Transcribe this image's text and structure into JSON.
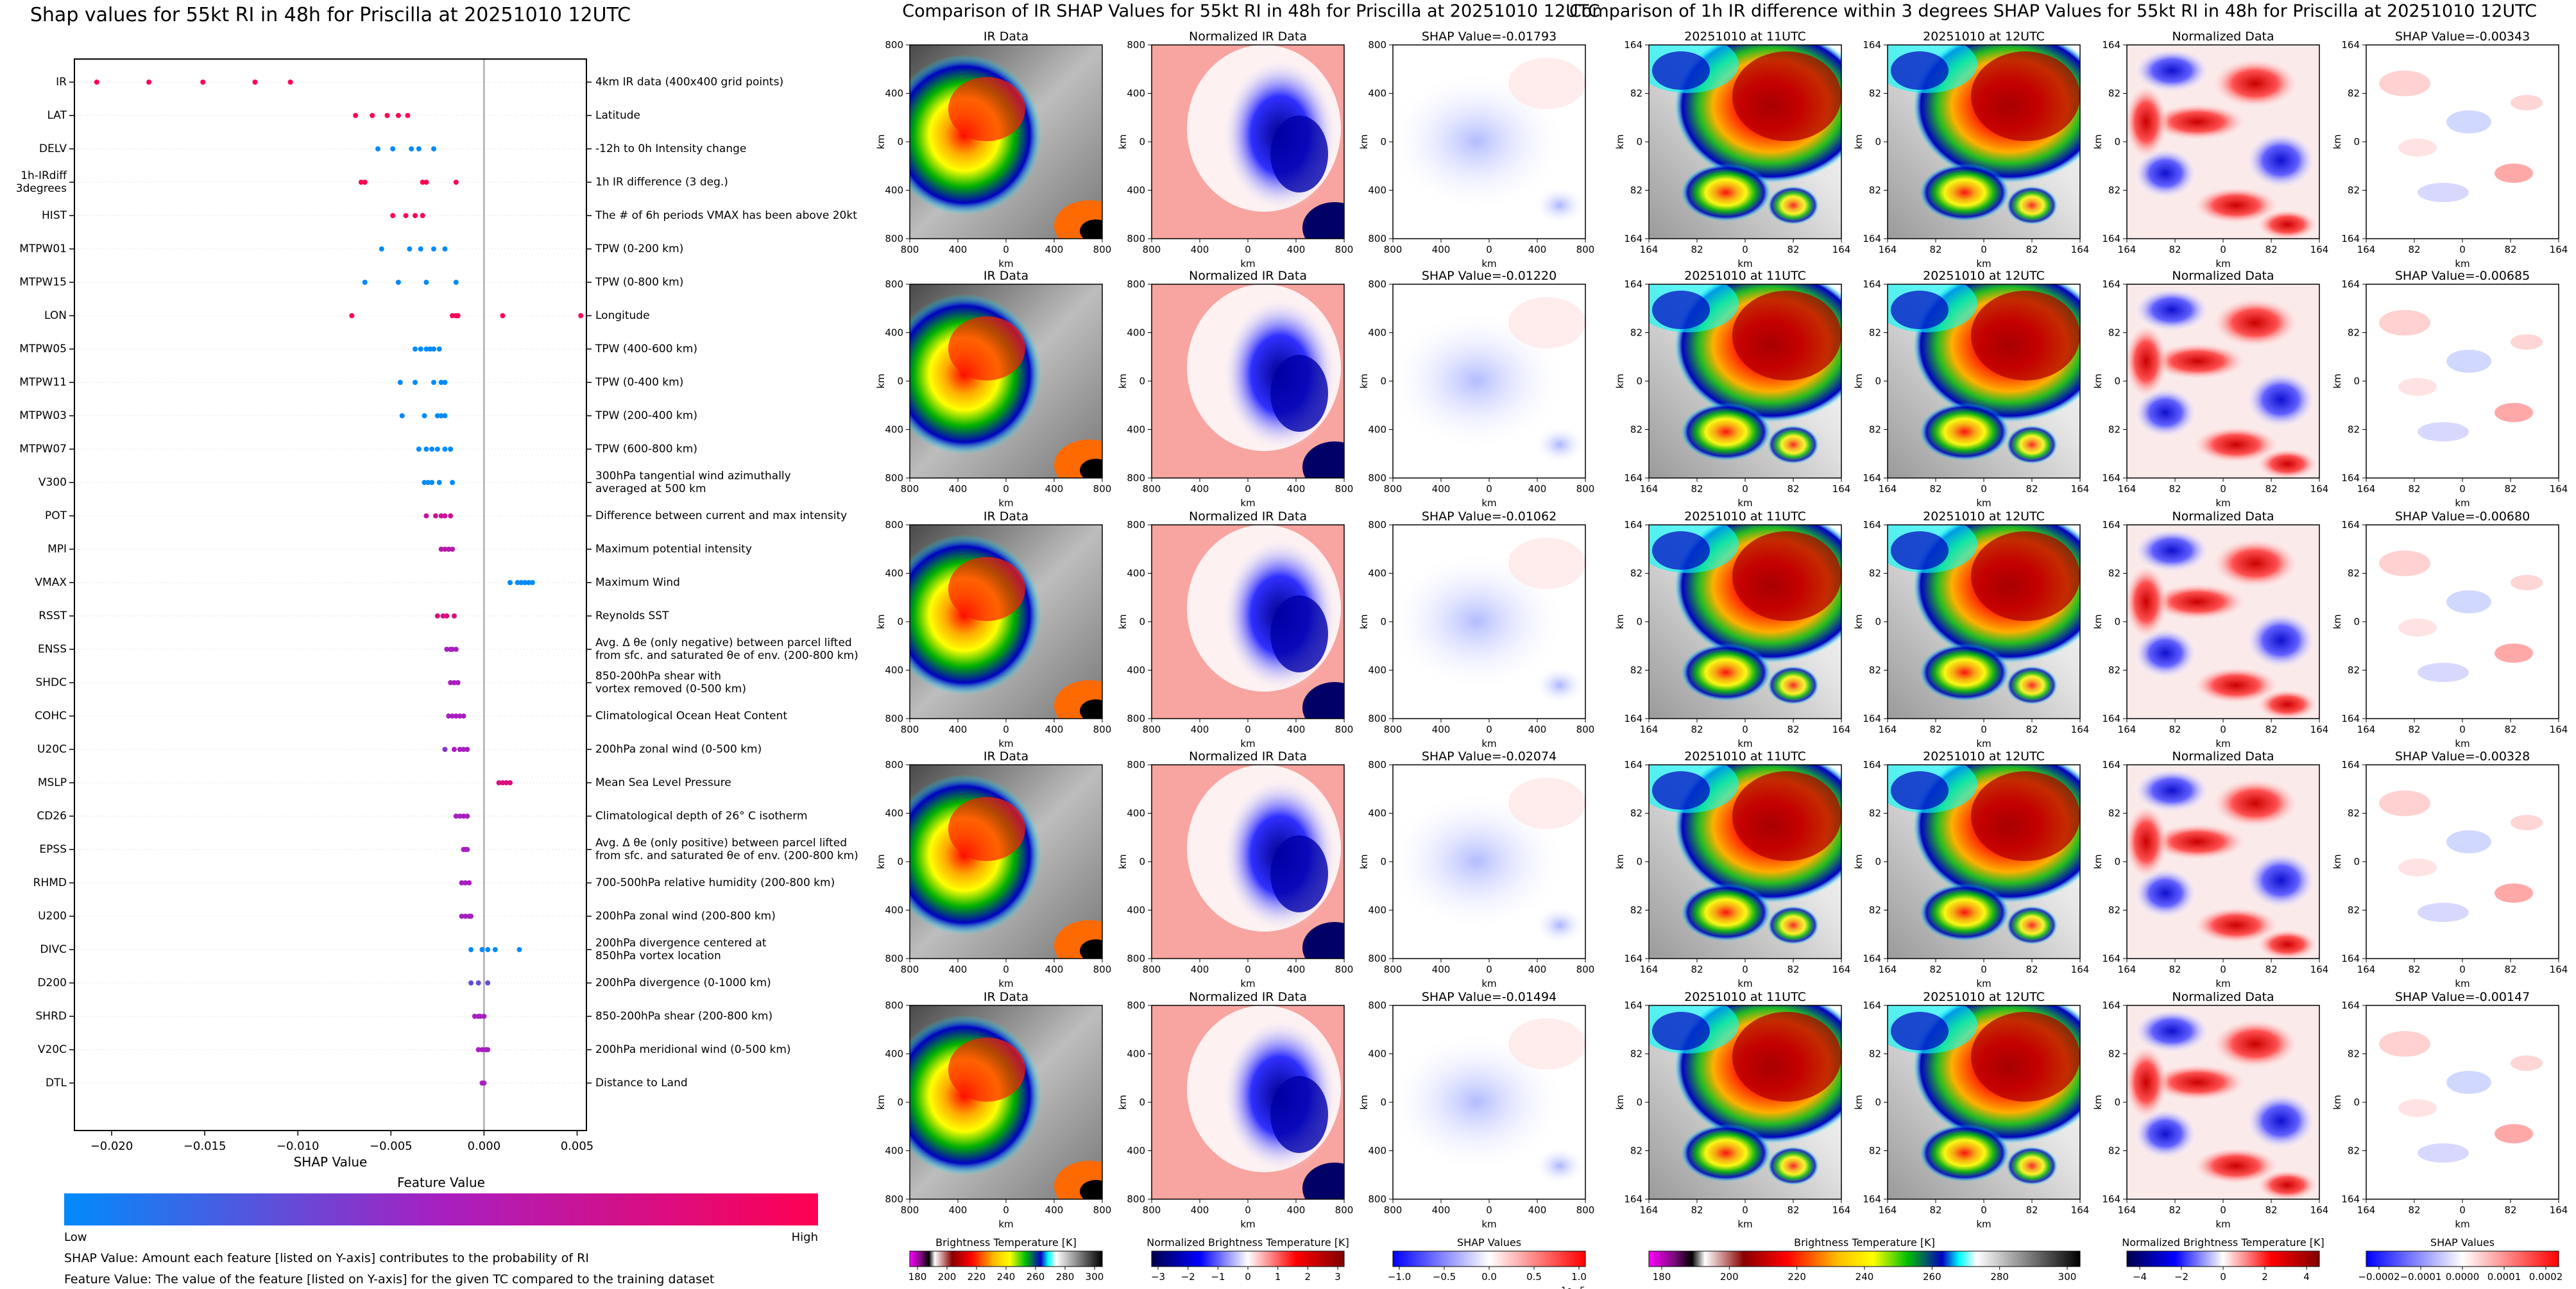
{
  "beeswarm": {
    "title": "Shap values for 55kt RI in 48h for Priscilla at 20251010 12UTC",
    "xlabel": "SHAP Value",
    "features": [
      {
        "name": "IR",
        "desc": "4km IR data (400x400 grid points)"
      },
      {
        "name": "LAT",
        "desc": "Latitude"
      },
      {
        "name": "DELV",
        "desc": "-12h to 0h Intensity change"
      },
      {
        "name": "1h-IRdiff\n3degrees",
        "desc": "1h IR difference (3 deg.)"
      },
      {
        "name": "HIST",
        "desc": "The # of 6h periods VMAX has been above 20kt"
      },
      {
        "name": "MTPW01",
        "desc": "TPW (0-200 km)"
      },
      {
        "name": "MTPW15",
        "desc": "TPW (0-800 km)"
      },
      {
        "name": "LON",
        "desc": "Longitude"
      },
      {
        "name": "MTPW05",
        "desc": "TPW (400-600 km)"
      },
      {
        "name": "MTPW11",
        "desc": "TPW (0-400 km)"
      },
      {
        "name": "MTPW03",
        "desc": "TPW (200-400 km)"
      },
      {
        "name": "MTPW07",
        "desc": "TPW (600-800 km)"
      },
      {
        "name": "V300",
        "desc": "300hPa tangential wind azimuthally\naveraged at 500 km"
      },
      {
        "name": "POT",
        "desc": "Difference between current and max intensity"
      },
      {
        "name": "MPI",
        "desc": "Maximum potential intensity"
      },
      {
        "name": "VMAX",
        "desc": "Maximum Wind"
      },
      {
        "name": "RSST",
        "desc": "Reynolds SST"
      },
      {
        "name": "ENSS",
        "desc": "Avg. Δ θe (only negative) between parcel lifted\nfrom sfc. and saturated θe of env. (200-800 km)"
      },
      {
        "name": "SHDC",
        "desc": "850-200hPa shear with\nvortex removed (0-500 km)"
      },
      {
        "name": "COHC",
        "desc": "Climatological Ocean Heat Content"
      },
      {
        "name": "U20C",
        "desc": "200hPa zonal wind (0-500 km)"
      },
      {
        "name": "MSLP",
        "desc": "Mean Sea Level Pressure"
      },
      {
        "name": "CD26",
        "desc": "Climatological depth of 26° C isotherm"
      },
      {
        "name": "EPSS",
        "desc": "Avg. Δ θe (only positive) between parcel lifted\nfrom sfc. and saturated θe of env. (200-800 km)"
      },
      {
        "name": "RHMD",
        "desc": "700-500hPa relative humidity (200-800 km)"
      },
      {
        "name": "U200",
        "desc": "200hPa zonal wind (200-800 km)"
      },
      {
        "name": "DIVC",
        "desc": "200hPa divergence centered at\n850hPa vortex location"
      },
      {
        "name": "D200",
        "desc": "200hPa divergence (0-1000 km)"
      },
      {
        "name": "SHRD",
        "desc": "850-200hPa shear (200-800 km)"
      },
      {
        "name": "V20C",
        "desc": "200hPa meridional wind (0-500 km)"
      },
      {
        "name": "DTL",
        "desc": "Distance to Land"
      }
    ],
    "xticks": [
      "−0.020",
      "−0.015",
      "−0.010",
      "−0.005",
      "0.000",
      "0.005"
    ],
    "colorbar": {
      "title": "Feature Value",
      "low": "Low",
      "high": "High",
      "low_color": "#008bfb",
      "high_color": "#ff0052"
    },
    "notes": [
      "SHAP Value: Amount each feature [listed on Y-axis] contributes to the probability of RI",
      "Feature Value: The value of the feature [listed on Y-axis] for the given TC compared to the training dataset"
    ]
  },
  "chart_data": {
    "type": "scatter",
    "title": "Shap values for 55kt RI in 48h for Priscilla at 20251010 12UTC",
    "xlabel": "SHAP Value",
    "xlim": [
      -0.022,
      0.0055
    ],
    "categories": [
      "IR",
      "LAT",
      "DELV",
      "1h-IRdiff 3degrees",
      "HIST",
      "MTPW01",
      "MTPW15",
      "LON",
      "MTPW05",
      "MTPW11",
      "MTPW03",
      "MTPW07",
      "V300",
      "POT",
      "MPI",
      "VMAX",
      "RSST",
      "ENSS",
      "SHDC",
      "COHC",
      "U20C",
      "MSLP",
      "CD26",
      "EPSS",
      "RHMD",
      "U200",
      "DIVC",
      "D200",
      "SHRD",
      "V20C",
      "DTL"
    ],
    "points": [
      [
        [
          -0.0208,
          1
        ],
        [
          -0.018,
          1
        ],
        [
          -0.0151,
          1
        ],
        [
          -0.0123,
          1
        ],
        [
          -0.0104,
          1
        ]
      ],
      [
        [
          -0.0069,
          1
        ],
        [
          -0.006,
          1
        ],
        [
          -0.0052,
          1
        ],
        [
          -0.0046,
          1
        ],
        [
          -0.0041,
          1
        ]
      ],
      [
        [
          -0.0057,
          0
        ],
        [
          -0.0049,
          0
        ],
        [
          -0.0039,
          0
        ],
        [
          -0.0035,
          0
        ],
        [
          -0.0027,
          0
        ]
      ],
      [
        [
          -0.0066,
          1
        ],
        [
          -0.0064,
          1
        ],
        [
          -0.0033,
          1
        ],
        [
          -0.0031,
          1
        ],
        [
          -0.0015,
          1
        ]
      ],
      [
        [
          -0.0049,
          1
        ],
        [
          -0.0042,
          1
        ],
        [
          -0.0037,
          1
        ],
        [
          -0.0033,
          1
        ]
      ],
      [
        [
          -0.0055,
          0
        ],
        [
          -0.004,
          0
        ],
        [
          -0.0034,
          0
        ],
        [
          -0.0027,
          0
        ],
        [
          -0.0021,
          0
        ]
      ],
      [
        [
          -0.0064,
          0
        ],
        [
          -0.0046,
          0
        ],
        [
          -0.0031,
          0
        ],
        [
          -0.0015,
          0
        ]
      ],
      [
        [
          -0.0071,
          1
        ],
        [
          -0.0017,
          1
        ],
        [
          -0.0015,
          1
        ],
        [
          -0.0014,
          1
        ],
        [
          0.001,
          1
        ],
        [
          0.0052,
          1
        ]
      ],
      [
        [
          -0.0037,
          0
        ],
        [
          -0.0034,
          0
        ],
        [
          -0.0031,
          0
        ],
        [
          -0.0029,
          0
        ],
        [
          -0.0027,
          0
        ],
        [
          -0.0024,
          0
        ]
      ],
      [
        [
          -0.0045,
          0
        ],
        [
          -0.0037,
          0
        ],
        [
          -0.0027,
          0
        ],
        [
          -0.0023,
          0
        ],
        [
          -0.0021,
          0
        ]
      ],
      [
        [
          -0.0044,
          0
        ],
        [
          -0.0032,
          0
        ],
        [
          -0.0025,
          0
        ],
        [
          -0.0023,
          0
        ],
        [
          -0.0021,
          0
        ]
      ],
      [
        [
          -0.0035,
          0
        ],
        [
          -0.0031,
          0
        ],
        [
          -0.0028,
          0
        ],
        [
          -0.0025,
          0
        ],
        [
          -0.0021,
          0
        ],
        [
          -0.0018,
          0
        ]
      ],
      [
        [
          -0.0032,
          0
        ],
        [
          -0.003,
          0
        ],
        [
          -0.0028,
          0
        ],
        [
          -0.0024,
          0
        ],
        [
          -0.0017,
          0
        ]
      ],
      [
        [
          -0.0031,
          0.7
        ],
        [
          -0.0026,
          0.7
        ],
        [
          -0.0023,
          0.7
        ],
        [
          -0.0021,
          0.7
        ],
        [
          -0.0018,
          0.7
        ]
      ],
      [
        [
          -0.0023,
          0.6
        ],
        [
          -0.0021,
          0.6
        ],
        [
          -0.0019,
          0.6
        ],
        [
          -0.0017,
          0.6
        ]
      ],
      [
        [
          0.0014,
          0
        ],
        [
          0.0018,
          0
        ],
        [
          0.002,
          0
        ],
        [
          0.0022,
          0
        ],
        [
          0.0024,
          0
        ],
        [
          0.0026,
          0
        ]
      ],
      [
        [
          -0.0025,
          0.8
        ],
        [
          -0.0022,
          0.8
        ],
        [
          -0.002,
          0.8
        ],
        [
          -0.0016,
          0.8
        ]
      ],
      [
        [
          -0.002,
          0.5
        ],
        [
          -0.0018,
          0.5
        ],
        [
          -0.0017,
          0.5
        ],
        [
          -0.0015,
          0.5
        ]
      ],
      [
        [
          -0.0018,
          0.5
        ],
        [
          -0.0016,
          0.5
        ],
        [
          -0.0014,
          0.5
        ]
      ],
      [
        [
          -0.0019,
          0.5
        ],
        [
          -0.0017,
          0.5
        ],
        [
          -0.0015,
          0.5
        ],
        [
          -0.0013,
          0.5
        ],
        [
          -0.0011,
          0.5
        ]
      ],
      [
        [
          -0.0021,
          0.4
        ],
        [
          -0.0016,
          0.5
        ],
        [
          -0.0013,
          0.5
        ],
        [
          -0.0011,
          0.5
        ],
        [
          -0.0009,
          0.5
        ]
      ],
      [
        [
          0.0008,
          0.8
        ],
        [
          0.001,
          0.8
        ],
        [
          0.0012,
          0.8
        ],
        [
          0.0014,
          0.8
        ]
      ],
      [
        [
          -0.0015,
          0.5
        ],
        [
          -0.0013,
          0.5
        ],
        [
          -0.0011,
          0.5
        ],
        [
          -0.0009,
          0.5
        ]
      ],
      [
        [
          -0.0011,
          0.5
        ],
        [
          -0.001,
          0.5
        ],
        [
          -0.0009,
          0.5
        ]
      ],
      [
        [
          -0.0012,
          0.5
        ],
        [
          -0.001,
          0.5
        ],
        [
          -0.0008,
          0.5
        ]
      ],
      [
        [
          -0.0012,
          0.5
        ],
        [
          -0.001,
          0.5
        ],
        [
          -0.0008,
          0.5
        ],
        [
          -0.0007,
          0.5
        ]
      ],
      [
        [
          -0.0007,
          0
        ],
        [
          -0.0001,
          0
        ],
        [
          0.0002,
          0
        ],
        [
          0.0006,
          0
        ],
        [
          0.0019,
          0
        ]
      ],
      [
        [
          -0.0007,
          0.3
        ],
        [
          -0.0003,
          0.3
        ],
        [
          0.0002,
          0.3
        ]
      ],
      [
        [
          -0.0005,
          0.5
        ],
        [
          -0.0003,
          0.5
        ],
        [
          -0.0002,
          0.5
        ],
        [
          0.0,
          0.5
        ]
      ],
      [
        [
          -0.0003,
          0.5
        ],
        [
          -0.0001,
          0.5
        ],
        [
          0.0001,
          0.5
        ],
        [
          0.0002,
          0.5
        ]
      ],
      [
        [
          -0.0001,
          0.5
        ],
        [
          0.0,
          0.5
        ]
      ]
    ]
  },
  "ir_grid": {
    "title": "Comparison of IR SHAP Values for 55kt RI in 48h for Priscilla at 20251010 12UTC",
    "col_titles": [
      "IR Data",
      "Normalized IR Data"
    ],
    "shap_titles": [
      "SHAP Value=-0.01793",
      "SHAP Value=-0.01220",
      "SHAP Value=-0.01062",
      "SHAP Value=-0.02074",
      "SHAP Value=-0.01494"
    ],
    "axis_unit": "km",
    "ticks": [
      "800",
      "400",
      "0",
      "400",
      "800"
    ],
    "colorbars": [
      {
        "label": "Brightness Temperature [K]",
        "ticks": [
          "180",
          "200",
          "220",
          "240",
          "260",
          "280",
          "300"
        ]
      },
      {
        "label": "Normalized Brightness Temperature [K]",
        "ticks": [
          "−3",
          "−2",
          "−1",
          "0",
          "1",
          "2",
          "3"
        ]
      },
      {
        "label": "SHAP Values",
        "ticks": [
          "−1.0",
          "−0.5",
          "0.0",
          "0.5",
          "1.0"
        ],
        "offset": "1e−5"
      }
    ]
  },
  "diff_grid": {
    "title": "Comparison of 1h IR difference within 3 degrees SHAP Values for 55kt RI in 48h for Priscilla at 20251010 12UTC",
    "col_titles": [
      "20251010 at 11UTC",
      "20251010 at 12UTC",
      "Normalized Data"
    ],
    "shap_titles": [
      "SHAP Value=-0.00343",
      "SHAP Value=-0.00685",
      "SHAP Value=-0.00680",
      "SHAP Value=-0.00328",
      "SHAP Value=-0.00147"
    ],
    "axis_unit": "km",
    "ticks": [
      "164",
      "82",
      "0",
      "82",
      "164"
    ],
    "colorbars": [
      {
        "label": "Brightness Temperature [K]",
        "ticks": [
          "180",
          "200",
          "220",
          "240",
          "260",
          "280",
          "300"
        ]
      },
      {
        "label": "Normalized Brightness Temperature [K]",
        "ticks": [
          "−4",
          "−2",
          "0",
          "2",
          "4"
        ]
      },
      {
        "label": "SHAP Values",
        "ticks": [
          "−0.0002",
          "−0.0001",
          "0.0000",
          "0.0001",
          "0.0002"
        ]
      }
    ]
  },
  "colors": {
    "shap_low": "#008bfb",
    "shap_high": "#ff0052",
    "zero_line": "#999999",
    "grid_row": "#cccccc"
  }
}
